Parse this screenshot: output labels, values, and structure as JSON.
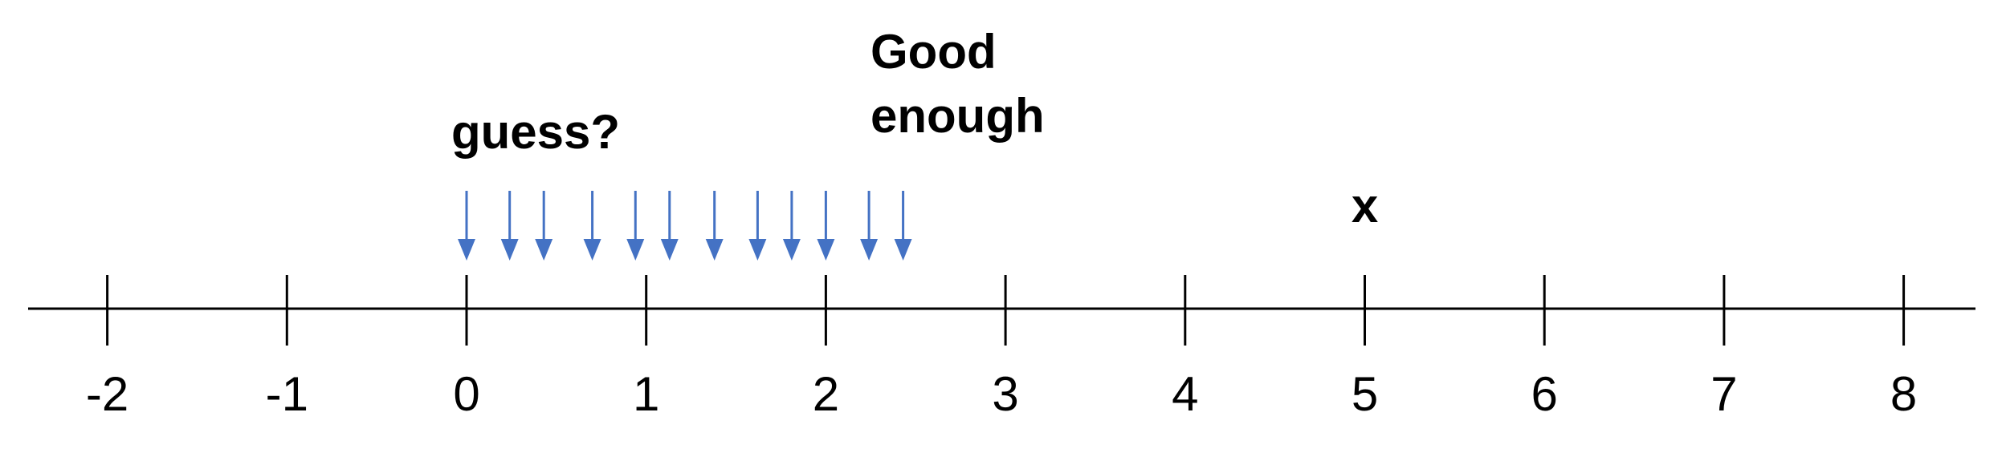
{
  "number_line": {
    "ticks": [
      -2,
      -1,
      0,
      1,
      2,
      3,
      4,
      5,
      6,
      7,
      8
    ],
    "tick_labels": [
      "-2",
      "-1",
      "0",
      "1",
      "2",
      "3",
      "4",
      "5",
      "6",
      "7",
      "8"
    ],
    "line_color": "#000000"
  },
  "labels": {
    "guess": "guess?",
    "good_line1": "Good",
    "good_line2": "enough",
    "target": "x"
  },
  "target_value": 5,
  "guess_arrows": {
    "values": [
      0,
      0.24,
      0.43,
      0.7,
      0.94,
      1.13,
      1.38,
      1.62,
      1.81,
      2.0,
      2.24,
      2.43
    ],
    "color": "#4472C4"
  }
}
